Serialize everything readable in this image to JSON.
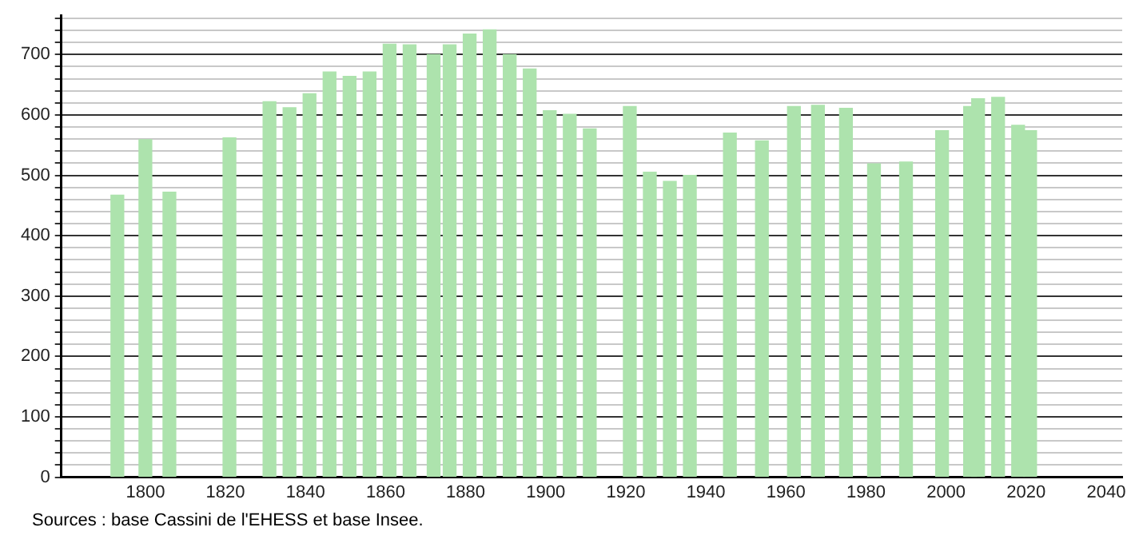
{
  "chart_data": {
    "type": "bar",
    "x": [
      1793,
      1800,
      1806,
      1821,
      1831,
      1836,
      1841,
      1846,
      1851,
      1856,
      1861,
      1866,
      1872,
      1876,
      1881,
      1886,
      1891,
      1896,
      1901,
      1906,
      1911,
      1921,
      1926,
      1931,
      1936,
      1946,
      1954,
      1962,
      1968,
      1975,
      1982,
      1990,
      1999,
      2006,
      2008,
      2013,
      2018,
      2021
    ],
    "values": [
      467,
      559,
      472,
      562,
      622,
      612,
      635,
      671,
      664,
      671,
      717,
      716,
      700,
      716,
      734,
      741,
      700,
      676,
      607,
      601,
      577,
      614,
      505,
      490,
      500,
      570,
      557,
      614,
      616,
      611,
      519,
      522,
      574,
      614,
      627,
      629,
      583,
      574
    ],
    "color": "#ade3ad",
    "xlim": [
      1779,
      2044
    ],
    "xticks": [
      1800,
      1820,
      1840,
      1860,
      1880,
      1900,
      1920,
      1940,
      1960,
      1980,
      2000,
      2020,
      2040
    ],
    "ylim": [
      0,
      765
    ],
    "yticks": [
      0,
      {
        "value": 20,
        "label": null
      },
      {
        "value": 40,
        "label": null
      },
      {
        "value": 60,
        "label": null
      },
      {
        "value": 80,
        "label": null
      },
      100,
      {
        "value": 120,
        "label": null
      },
      {
        "value": 140,
        "label": null
      },
      {
        "value": 160,
        "label": null
      },
      {
        "value": 180,
        "label": null
      },
      200,
      {
        "value": 220,
        "label": null
      },
      {
        "value": 240,
        "label": null
      },
      {
        "value": 260,
        "label": null
      },
      {
        "value": 280,
        "label": null
      },
      300,
      {
        "value": 320,
        "label": null
      },
      {
        "value": 340,
        "label": null
      },
      {
        "value": 360,
        "label": null
      },
      {
        "value": 380,
        "label": null
      },
      400,
      {
        "value": 420,
        "label": null
      },
      {
        "value": 440,
        "label": null
      },
      {
        "value": 460,
        "label": null
      },
      {
        "value": 480,
        "label": null
      },
      500,
      {
        "value": 520,
        "label": null
      },
      {
        "value": 540,
        "label": null
      },
      {
        "value": 560,
        "label": null
      },
      {
        "value": 580,
        "label": null
      },
      600,
      {
        "value": 620,
        "label": null
      },
      {
        "value": 640,
        "label": null
      },
      {
        "value": 660,
        "label": null
      },
      {
        "value": 680,
        "label": null
      },
      700,
      {
        "value": 720,
        "label": null
      },
      {
        "value": 740,
        "label": null
      },
      {
        "value": 760,
        "label": null
      }
    ],
    "grid": "y",
    "annotations": [
      "Sources : base Cassini de l'EHESS et base Insee."
    ]
  }
}
